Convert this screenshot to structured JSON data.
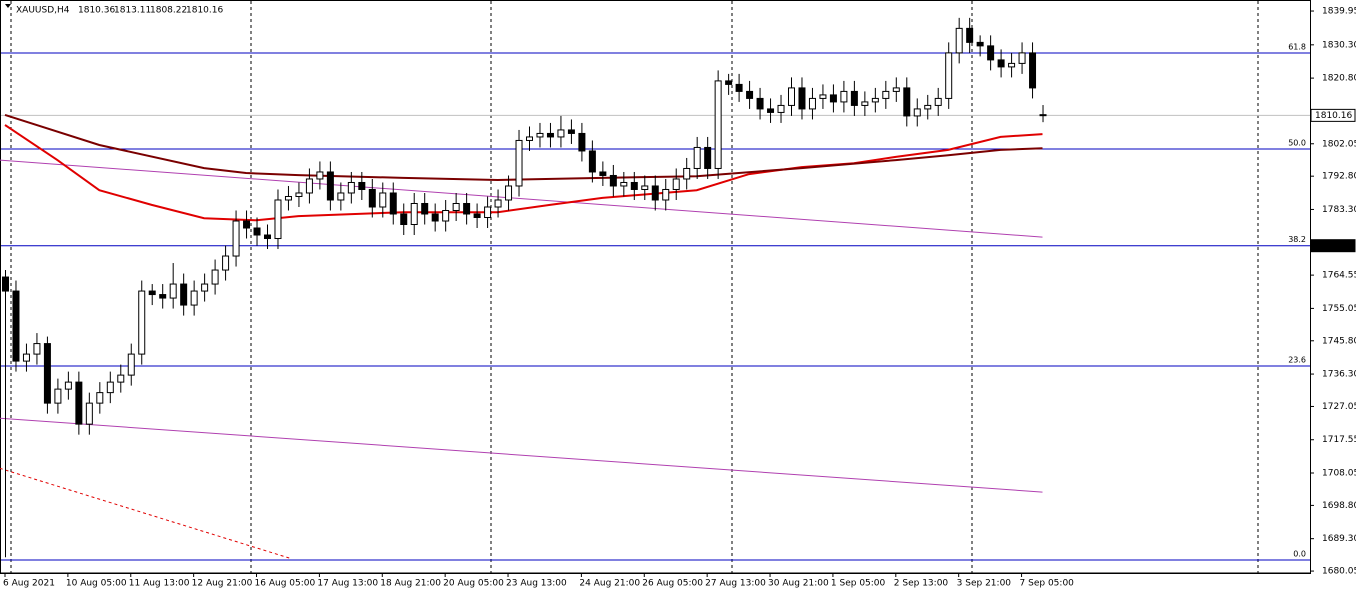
{
  "chart_data": {
    "type": "candlestick",
    "symbol": "XAUUSD,H4",
    "open": [
      1764,
      1760,
      1740,
      1742,
      1745,
      1728,
      1732,
      1734,
      1722,
      1728,
      1731,
      1734,
      1736,
      1742,
      1760,
      1759,
      1758,
      1762,
      1756,
      1760,
      1762,
      1766,
      1770,
      1780,
      1778,
      1776,
      1775,
      1786,
      1787,
      1788,
      1792,
      1794,
      1786,
      1788,
      1791,
      1789,
      1784,
      1788,
      1782,
      1779,
      1785,
      1782,
      1780,
      1783,
      1785,
      1782,
      1781,
      1784,
      1786,
      1790,
      1803,
      1804,
      1805,
      1804,
      1806,
      1805,
      1800,
      1794,
      1793,
      1790,
      1791,
      1789,
      1790,
      1786,
      1789,
      1792,
      1795,
      1801,
      1795,
      1820,
      1819,
      1817,
      1815,
      1812,
      1811,
      1813,
      1818,
      1812,
      1815,
      1816,
      1814,
      1817,
      1813,
      1814,
      1815,
      1817,
      1818,
      1810,
      1812,
      1813,
      1815,
      1828,
      1835,
      1831,
      1830,
      1826,
      1824,
      1825,
      1828,
      1810.36
    ],
    "high": [
      1766,
      1763,
      1745,
      1748,
      1747,
      1735,
      1737,
      1737,
      1731,
      1734,
      1737,
      1739,
      1745,
      1763,
      1762,
      1762,
      1768,
      1765,
      1763,
      1765,
      1769,
      1773,
      1783,
      1783,
      1781,
      1779,
      1789,
      1790,
      1791,
      1795,
      1797,
      1797,
      1791,
      1794,
      1794,
      1792,
      1791,
      1791,
      1785,
      1788,
      1788,
      1785,
      1786,
      1788,
      1788,
      1785,
      1787,
      1789,
      1793,
      1806,
      1807,
      1808,
      1808,
      1810,
      1809,
      1808,
      1803,
      1797,
      1796,
      1794,
      1794,
      1793,
      1793,
      1792,
      1795,
      1798,
      1804,
      1804,
      1823,
      1822,
      1822,
      1820,
      1818,
      1815,
      1816,
      1821,
      1821,
      1818,
      1819,
      1819,
      1820,
      1820,
      1817,
      1818,
      1820,
      1821,
      1821,
      1815,
      1816,
      1818,
      1831,
      1838,
      1838,
      1833,
      1833,
      1829,
      1828,
      1831,
      1831,
      1813.11
    ],
    "low": [
      1684,
      1737,
      1737,
      1739,
      1725,
      1725,
      1729,
      1719,
      1719,
      1725,
      1728,
      1731,
      1733,
      1739,
      1756,
      1755,
      1755,
      1753,
      1753,
      1757,
      1759,
      1763,
      1767,
      1775,
      1773,
      1772,
      1772,
      1783,
      1784,
      1785,
      1789,
      1783,
      1783,
      1785,
      1786,
      1781,
      1781,
      1779,
      1776,
      1776,
      1779,
      1777,
      1777,
      1780,
      1779,
      1778,
      1778,
      1781,
      1783,
      1787,
      1800,
      1801,
      1801,
      1801,
      1802,
      1797,
      1791,
      1790,
      1787,
      1787,
      1786,
      1786,
      1783,
      1783,
      1786,
      1789,
      1792,
      1792,
      1792,
      1816,
      1814,
      1812,
      1809,
      1808,
      1808,
      1810,
      1809,
      1809,
      1812,
      1811,
      1811,
      1810,
      1810,
      1811,
      1812,
      1814,
      1807,
      1807,
      1809,
      1810,
      1812,
      1825,
      1828,
      1827,
      1823,
      1821,
      1821,
      1822,
      1815,
      1808.22
    ],
    "close": [
      1760,
      1740,
      1742,
      1745,
      1728,
      1732,
      1734,
      1722,
      1728,
      1731,
      1734,
      1736,
      1742,
      1760,
      1759,
      1758,
      1762,
      1756,
      1760,
      1762,
      1766,
      1770,
      1780,
      1778,
      1776,
      1775,
      1786,
      1787,
      1788,
      1792,
      1794,
      1786,
      1788,
      1791,
      1789,
      1784,
      1788,
      1782,
      1779,
      1785,
      1782,
      1780,
      1783,
      1785,
      1782,
      1781,
      1784,
      1786,
      1790,
      1803,
      1804,
      1805,
      1804,
      1806,
      1805,
      1800,
      1794,
      1793,
      1790,
      1791,
      1789,
      1790,
      1786,
      1789,
      1792,
      1795,
      1801,
      1795,
      1820,
      1819,
      1817,
      1815,
      1812,
      1811,
      1813,
      1818,
      1812,
      1815,
      1816,
      1814,
      1817,
      1813,
      1814,
      1815,
      1817,
      1818,
      1810,
      1812,
      1813,
      1815,
      1828,
      1835,
      1831,
      1830,
      1826,
      1824,
      1825,
      1828,
      1818,
      1810.16
    ],
    "categories": [
      "6 Aug 2021",
      null,
      null,
      null,
      null,
      null,
      "10 Aug 05:00",
      null,
      null,
      null,
      null,
      null,
      "11 Aug 13:00",
      null,
      null,
      null,
      null,
      null,
      "12 Aug 21:00",
      null,
      null,
      null,
      null,
      null,
      "16 Aug 05:00",
      null,
      null,
      null,
      null,
      null,
      "17 Aug 13:00",
      null,
      null,
      null,
      null,
      null,
      "18 Aug 21:00",
      null,
      null,
      null,
      null,
      null,
      "20 Aug 05:00",
      null,
      null,
      null,
      null,
      null,
      "23 Aug 13:00",
      null,
      null,
      null,
      null,
      null,
      null,
      "24 Aug 21:00",
      null,
      null,
      null,
      null,
      null,
      "26 Aug 05:00",
      null,
      null,
      null,
      null,
      null,
      "27 Aug 13:00",
      null,
      null,
      null,
      null,
      null,
      "30 Aug 21:00",
      null,
      null,
      null,
      null,
      null,
      "1 Sep 05:00",
      null,
      null,
      null,
      null,
      null,
      "2 Sep 13:00",
      null,
      null,
      null,
      null,
      null,
      "3 Sep 21:00",
      null,
      null,
      null,
      null,
      null,
      "7 Sep 05:00",
      null,
      null
    ],
    "up_color": "#ffffff",
    "down_color": "#000000",
    "ylim": [
      1679.5,
      1843.1
    ],
    "yticks": [
      1839.95,
      {
        "value": 1830.3,
        "label": "1830.30"
      },
      {
        "value": 1820.8,
        "label": "1820.80"
      },
      1802.05,
      {
        "value": 1792.8,
        "label": "1792.80"
      },
      {
        "value": 1783.3,
        "label": "1783.30"
      },
      1764.55,
      1755.05,
      {
        "value": 1745.8,
        "label": "1745.80"
      },
      {
        "value": 1736.3,
        "label": "1736.30"
      },
      1727.05,
      1717.55,
      1708.05,
      {
        "value": 1698.8,
        "label": "1698.80"
      },
      {
        "value": 1689.3,
        "label": "1689.30"
      },
      1680.05
    ],
    "moving_averages": [
      {
        "color": "#e00000",
        "x": [
          0,
          5,
          9,
          14,
          19,
          24,
          28,
          38,
          47,
          52,
          57,
          66,
          71,
          76,
          81,
          85,
          90,
          95,
          99
        ],
        "values": [
          1807.4,
          1797.4,
          1788.8,
          1784.6,
          1780.8,
          1780.2,
          1781.4,
          1782.5,
          1782.5,
          1784.6,
          1786.6,
          1788.8,
          1793.4,
          1795.4,
          1796.5,
          1798.3,
          1800.3,
          1804,
          1804.8
        ]
      },
      {
        "color": "#7a0000",
        "x": [
          0,
          9,
          19,
          23,
          28,
          38,
          47,
          57,
          66,
          76,
          85,
          90,
          95,
          99
        ],
        "values": [
          1810.3,
          1801.7,
          1795.1,
          1793.7,
          1793.1,
          1792.3,
          1791.7,
          1792.3,
          1792.8,
          1795.1,
          1797.4,
          1798.8,
          1800.3,
          1800.8
        ]
      }
    ],
    "trendlines": [
      {
        "color": "#b040b0",
        "x": [
          -0.5,
          99
        ],
        "values": [
          1797.4,
          1775.4
        ]
      },
      {
        "color": "#b040b0",
        "x": [
          -0.5,
          99
        ],
        "values": [
          1723.7,
          1702.6
        ]
      },
      {
        "color": "#e00000",
        "dashed": true,
        "x": [
          -0.5,
          27.2
        ],
        "values": [
          1709.4,
          1683.7
        ]
      }
    ],
    "fib_levels": [
      {
        "label": "61.8",
        "price": 1827.96
      },
      {
        "label": "50.0",
        "price": 1800.55
      },
      {
        "label": "38.2",
        "price": 1772.95
      },
      {
        "label": "23.6",
        "price": 1738.6
      },
      {
        "label": "0.0",
        "price": 1683.2
      }
    ],
    "fib_color": "#0000c0"
  }
}
